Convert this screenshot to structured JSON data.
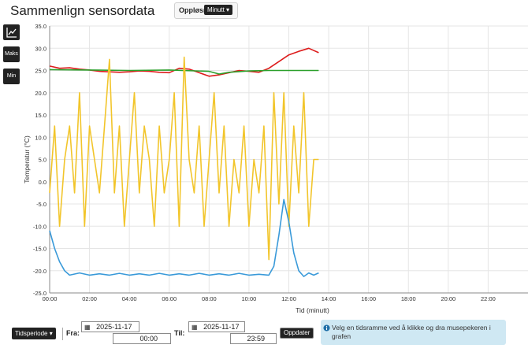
{
  "header": {
    "title": "Sammenlign sensordata",
    "resolution_label": "Oppløsning:",
    "resolution_value": "Minutt"
  },
  "sidebar": {
    "chart_type_icon": "line-chart-icon",
    "max_label": "Maks",
    "min_label": "Min"
  },
  "controls": {
    "period_label": "Tidsperiode",
    "from_label": "Fra:",
    "from_date": "2025-11-17",
    "from_time": "00:00",
    "to_label": "Til:",
    "to_date": "2025-11-17",
    "to_time": "23:59",
    "update_label": "Oppdater",
    "info_text": "Velg en tidsramme ved å klikke og dra musepekeren i grafen"
  },
  "colors": {
    "red": "#dd1c1c",
    "green": "#2ca02c",
    "yellow": "#f2c52b",
    "blue": "#3a9ad9"
  },
  "chart_data": {
    "type": "line",
    "xlabel": "Tid (minutt)",
    "ylabel": "Temperatur (°C)",
    "xlim": [
      0,
      24
    ],
    "ylim": [
      -25,
      35
    ],
    "grid": true,
    "x_ticks": [
      "00:00",
      "02:00",
      "04:00",
      "06:00",
      "08:00",
      "10:00",
      "12:00",
      "14:00",
      "16:00",
      "18:00",
      "20:00",
      "22:00"
    ],
    "y_ticks": [
      "35.0",
      "30.0",
      "25.0",
      "20.0",
      "15.0",
      "10.0",
      "5.0",
      "0.0",
      "-5.0",
      "-10.0",
      "-15.0",
      "-20.0",
      "-25.0"
    ],
    "series": [
      {
        "color": "#dd1c1c",
        "x": [
          0,
          0.5,
          1,
          1.5,
          2,
          2.5,
          3,
          3.5,
          4,
          4.5,
          5,
          5.5,
          6,
          6.5,
          7,
          7.5,
          8,
          8.5,
          9,
          9.5,
          10,
          10.5,
          11,
          11.5,
          12,
          12.5,
          13,
          13.5
        ],
        "y": [
          26,
          25.5,
          25.6,
          25.3,
          25.1,
          24.8,
          24.7,
          24.6,
          24.7,
          24.9,
          24.8,
          24.6,
          24.5,
          25.5,
          25.3,
          24.5,
          23.7,
          24,
          24.5,
          25,
          24.8,
          24.6,
          25.5,
          27,
          28.5,
          29.3,
          30,
          29
        ]
      },
      {
        "color": "#2ca02c",
        "x": [
          0,
          2,
          4,
          6,
          8,
          8.5,
          9,
          10,
          11,
          12,
          13.5
        ],
        "y": [
          25.2,
          25.1,
          25,
          25.1,
          24.8,
          24.2,
          24.6,
          24.9,
          25,
          25,
          25
        ]
      },
      {
        "color": "#f2c52b",
        "x": [
          0,
          0.25,
          0.5,
          0.75,
          1,
          1.25,
          1.5,
          1.75,
          2,
          2.25,
          2.5,
          2.75,
          3,
          3.25,
          3.5,
          3.75,
          4,
          4.25,
          4.5,
          4.75,
          5,
          5.25,
          5.5,
          5.75,
          6,
          6.25,
          6.5,
          6.75,
          7,
          7.25,
          7.5,
          7.75,
          8,
          8.25,
          8.5,
          8.75,
          9,
          9.25,
          9.5,
          9.75,
          10,
          10.25,
          10.5,
          10.75,
          11,
          11.25,
          11.5,
          11.75,
          12,
          12.25,
          12.5,
          12.75,
          13,
          13.25,
          13.5
        ],
        "y": [
          -2.5,
          12.5,
          -10,
          5,
          12.5,
          -2.5,
          20,
          -10,
          12.5,
          5,
          -2.5,
          12.5,
          27.5,
          -2.5,
          12.5,
          -10,
          5,
          20,
          -2.5,
          12.5,
          5,
          -10,
          12.5,
          -2.5,
          5,
          20,
          -10,
          28,
          5,
          -2.5,
          12.5,
          -10,
          5,
          20,
          -2.5,
          12.5,
          -10,
          5,
          -2.5,
          12.5,
          -10,
          5,
          -2.5,
          12.5,
          -17.5,
          20,
          -5,
          20,
          -10,
          12.5,
          -2.5,
          20,
          -10,
          5,
          5
        ]
      },
      {
        "color": "#3a9ad9",
        "x": [
          0,
          0.25,
          0.5,
          0.75,
          1,
          1.5,
          2,
          2.5,
          3,
          3.5,
          4,
          4.5,
          5,
          5.5,
          6,
          6.5,
          7,
          7.5,
          8,
          8.5,
          9,
          9.5,
          10,
          10.5,
          11,
          11.25,
          11.5,
          11.75,
          12,
          12.25,
          12.5,
          12.75,
          13,
          13.25,
          13.5
        ],
        "y": [
          -11,
          -15,
          -18,
          -20,
          -21,
          -20.5,
          -21,
          -20.7,
          -21,
          -20.6,
          -21,
          -20.7,
          -21,
          -20.6,
          -21,
          -20.7,
          -21,
          -20.6,
          -21,
          -20.7,
          -21,
          -20.6,
          -21,
          -20.8,
          -21,
          -19,
          -12,
          -4,
          -9,
          -16,
          -20,
          -21.3,
          -20.5,
          -21,
          -20.5
        ]
      }
    ]
  }
}
